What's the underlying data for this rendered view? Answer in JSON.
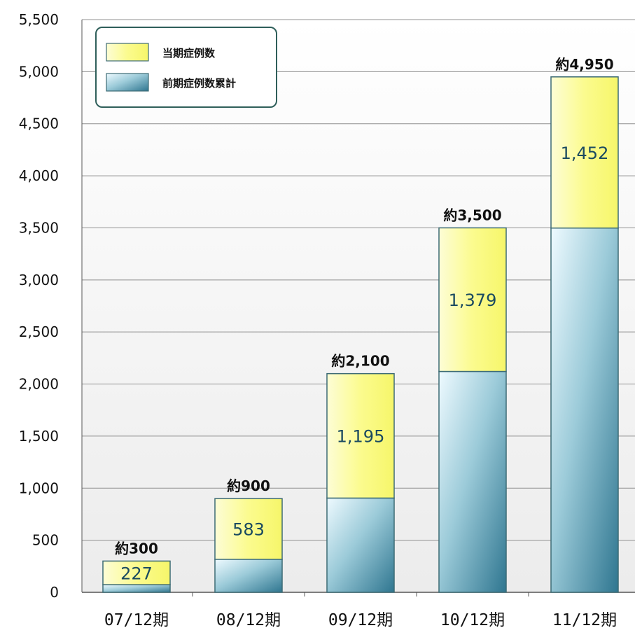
{
  "chart_data": {
    "type": "bar",
    "stacked": true,
    "categories": [
      "07/12期",
      "08/12期",
      "09/12期",
      "10/12期",
      "11/12期"
    ],
    "series": [
      {
        "name": "前期症例数累計",
        "values": [
          73,
          317,
          905,
          2121,
          3498
        ],
        "color": "#5f9db1"
      },
      {
        "name": "当期症例数",
        "values": [
          227,
          583,
          1195,
          1379,
          1452
        ],
        "color": "#fbfb8e"
      }
    ],
    "segment_labels": [
      "227",
      "583",
      "1,195",
      "1,379",
      "1,452"
    ],
    "total_labels": [
      "約300",
      "約900",
      "約2,100",
      "約3,500",
      "約4,950"
    ],
    "ylim": [
      0,
      5500
    ],
    "yticks": [
      0,
      500,
      1000,
      1500,
      2000,
      2500,
      3000,
      3500,
      4000,
      4500,
      5000,
      5500
    ],
    "ytick_labels": [
      "0",
      "500",
      "1,000",
      "1,500",
      "2,000",
      "2,500",
      "3,000",
      "3,500",
      "4,000",
      "4,500",
      "5,000",
      "5,500"
    ],
    "grid": true,
    "legend": {
      "position": "top-left",
      "entries": [
        {
          "label": "当期症例数",
          "color": "#fbfb8e"
        },
        {
          "label": "前期症例数累計",
          "color": "#5f9db1"
        }
      ]
    },
    "colors": {
      "frame": "#2f5f5a",
      "grid": "#909090",
      "bar_border": "#3d6b74",
      "label": "#1a4a60"
    }
  }
}
